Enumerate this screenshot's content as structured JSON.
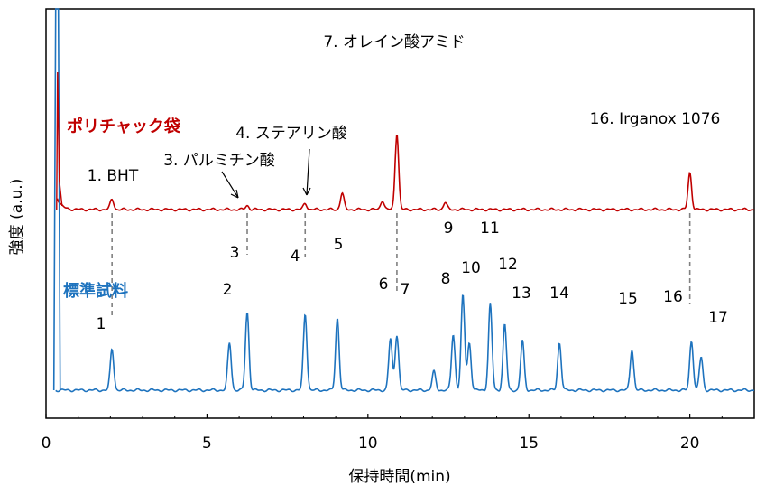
{
  "chart_data": {
    "type": "line",
    "xlabel": "保持時間(min)",
    "ylabel": "強度 (a.u.)",
    "xlim": [
      0,
      22
    ],
    "xticks": [
      0,
      5,
      10,
      15,
      20
    ],
    "xtick_labels": [
      "0",
      "5",
      "10",
      "15",
      "20"
    ],
    "grid": false,
    "legend": "none",
    "series": [
      {
        "name": "ポリチャック袋",
        "color": "#C00000",
        "baseline": 0.52,
        "peaks": [
          {
            "x": 2.05,
            "h": 0.05
          },
          {
            "x": 6.25,
            "h": 0.02
          },
          {
            "x": 8.05,
            "h": 0.03
          },
          {
            "x": 9.2,
            "h": 0.08
          },
          {
            "x": 10.45,
            "h": 0.045
          },
          {
            "x": 10.9,
            "h": 0.37
          },
          {
            "x": 12.4,
            "h": 0.035
          },
          {
            "x": 20.0,
            "h": 0.18
          }
        ],
        "labels": [
          {
            "text": "1. BHT",
            "x": 2.05
          },
          {
            "text": "3. パルミチン酸",
            "x": 6.25
          },
          {
            "text": "4. ステアリン酸",
            "x": 8.05
          },
          {
            "text": "7. オレイン酸アミド",
            "x": 10.9
          },
          {
            "text": "16. Irganox 1076",
            "x": 20.0
          }
        ]
      },
      {
        "name": "標準試料",
        "color": "#1E73BE",
        "baseline": 0.0,
        "peaks": [
          {
            "x": 2.05,
            "h": 0.2
          },
          {
            "x": 5.7,
            "h": 0.23
          },
          {
            "x": 6.25,
            "h": 0.38
          },
          {
            "x": 8.05,
            "h": 0.37
          },
          {
            "x": 9.05,
            "h": 0.35
          },
          {
            "x": 10.7,
            "h": 0.25
          },
          {
            "x": 10.9,
            "h": 0.27
          },
          {
            "x": 12.05,
            "h": 0.09
          },
          {
            "x": 12.65,
            "h": 0.27
          },
          {
            "x": 12.95,
            "h": 0.46
          },
          {
            "x": 13.15,
            "h": 0.23
          },
          {
            "x": 13.8,
            "h": 0.42
          },
          {
            "x": 14.25,
            "h": 0.32
          },
          {
            "x": 14.8,
            "h": 0.24
          },
          {
            "x": 15.95,
            "h": 0.23
          },
          {
            "x": 18.2,
            "h": 0.2
          },
          {
            "x": 20.05,
            "h": 0.24
          },
          {
            "x": 20.35,
            "h": 0.16
          }
        ],
        "peak_numbers": [
          "1",
          "2",
          "3",
          "4",
          "5",
          "6",
          "7",
          "8",
          "9",
          "10",
          "11",
          "12",
          "13",
          "14",
          "15",
          "16",
          "17"
        ]
      }
    ]
  }
}
